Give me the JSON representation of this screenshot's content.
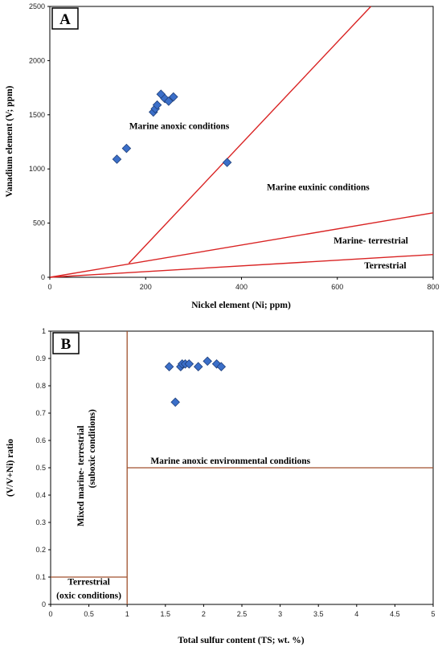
{
  "chart_data": [
    {
      "type": "scatter",
      "panel_label": "A",
      "xlabel": "Nickel element (Ni; ppm)",
      "ylabel": "Vanadium element (V; ppm)",
      "xlim": [
        0,
        800
      ],
      "ylim": [
        0,
        2500
      ],
      "xticks": [
        0,
        200,
        400,
        600,
        800
      ],
      "yticks": [
        0,
        500,
        1000,
        1500,
        2000,
        2500
      ],
      "grid": false,
      "marker_color": "#3b6fc9",
      "line_color": "#d92323",
      "points": [
        {
          "x": 140,
          "y": 1090
        },
        {
          "x": 160,
          "y": 1190
        },
        {
          "x": 216,
          "y": 1525
        },
        {
          "x": 220,
          "y": 1555
        },
        {
          "x": 224,
          "y": 1590
        },
        {
          "x": 232,
          "y": 1690
        },
        {
          "x": 240,
          "y": 1650
        },
        {
          "x": 248,
          "y": 1625
        },
        {
          "x": 258,
          "y": 1665
        },
        {
          "x": 370,
          "y": 1060
        }
      ],
      "boundary_lines": [
        {
          "x": [
            165,
            670
          ],
          "y": [
            130,
            2500
          ]
        },
        {
          "x": [
            0,
            800
          ],
          "y": [
            0,
            595
          ]
        },
        {
          "x": [
            0,
            800
          ],
          "y": [
            0,
            210
          ]
        }
      ],
      "region_labels": [
        {
          "text": "Marine anoxic conditions",
          "x": 270,
          "y": 1370
        },
        {
          "text": "Marine euxinic conditions",
          "x": 560,
          "y": 805
        },
        {
          "text": "Marine- terrestrial",
          "x": 670,
          "y": 310
        },
        {
          "text": "Terrestrial",
          "x": 700,
          "y": 80
        }
      ]
    },
    {
      "type": "scatter",
      "panel_label": "B",
      "xlabel": "Total sulfur content (TS; wt. %)",
      "ylabel": "(V/V+Ni) ratio",
      "xlim": [
        0,
        5
      ],
      "ylim": [
        0,
        1
      ],
      "xticks": [
        "0",
        "0.5",
        "1",
        "1.5",
        "2",
        "2.5",
        "3",
        "3.5",
        "4",
        "4.5",
        "5"
      ],
      "yticks": [
        "0",
        "0.1",
        "0.2",
        "0.3",
        "0.4",
        "0.5",
        "0.6",
        "0.7",
        "0.8",
        "0.9",
        "1"
      ],
      "grid": false,
      "marker_color": "#3b6fc9",
      "line_color": "#a0522d",
      "points": [
        {
          "x": 1.55,
          "y": 0.87
        },
        {
          "x": 1.63,
          "y": 0.74
        },
        {
          "x": 1.7,
          "y": 0.87
        },
        {
          "x": 1.72,
          "y": 0.88
        },
        {
          "x": 1.76,
          "y": 0.88
        },
        {
          "x": 1.81,
          "y": 0.88
        },
        {
          "x": 1.93,
          "y": 0.87
        },
        {
          "x": 2.05,
          "y": 0.89
        },
        {
          "x": 2.17,
          "y": 0.88
        },
        {
          "x": 2.23,
          "y": 0.87
        }
      ],
      "boundary_lines": [
        {
          "x": [
            1,
            1
          ],
          "y": [
            0,
            1
          ]
        },
        {
          "x": [
            1,
            5
          ],
          "y": [
            0.5,
            0.5
          ]
        },
        {
          "x": [
            0,
            1
          ],
          "y": [
            0.1,
            0.1
          ]
        }
      ],
      "region_labels": [
        {
          "text": "Marine anoxic environmental conditions",
          "x": 2.35,
          "y": 0.515,
          "rotate": false
        },
        {
          "text": "Mixed marine- terrestrial",
          "x": 0.43,
          "y": 0.47,
          "rotate": true
        },
        {
          "text": "(suboxic conditions)",
          "x": 0.58,
          "y": 0.57,
          "rotate": true
        },
        {
          "text": "Terrestrial",
          "x": 0.5,
          "y": 0.072,
          "rotate": false
        },
        {
          "text": "(oxic conditions)",
          "x": 0.5,
          "y": 0.022,
          "rotate": false
        }
      ]
    }
  ]
}
